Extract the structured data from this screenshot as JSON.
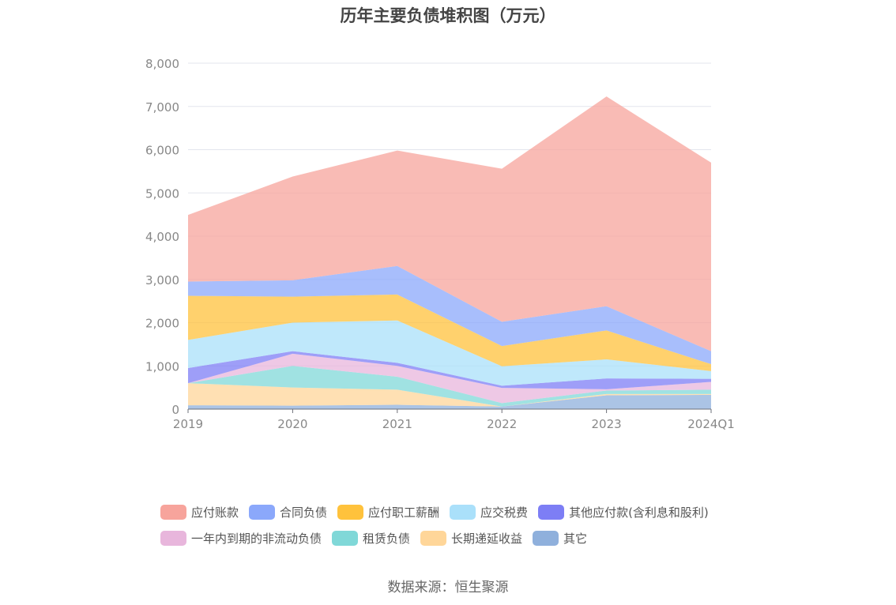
{
  "title": "历年主要负债堆积图（万元）",
  "source": "数据来源：恒生聚源",
  "chart_data": {
    "type": "area",
    "stacked": true,
    "title": "历年主要负债堆积图（万元）",
    "xlabel": "",
    "ylabel": "",
    "x": [
      "2019",
      "2020",
      "2021",
      "2022",
      "2023",
      "2024Q1"
    ],
    "ylim": [
      0,
      8000
    ],
    "yticks": [
      0,
      1000,
      2000,
      3000,
      4000,
      5000,
      6000,
      7000,
      8000
    ],
    "ytick_labels": [
      "0",
      "1,000",
      "2,000",
      "3,000",
      "4,000",
      "5,000",
      "6,000",
      "7,000",
      "8,000"
    ],
    "grid": "horizontal",
    "legend_position": "bottom",
    "series": [
      {
        "name": "其它",
        "color": "#8fb0dc",
        "values": [
          90,
          80,
          100,
          60,
          320,
          330
        ]
      },
      {
        "name": "长期递延收益",
        "color": "#ffd699",
        "values": [
          510,
          420,
          350,
          0,
          30,
          20
        ]
      },
      {
        "name": "租赁负债",
        "color": "#80d8d8",
        "values": [
          0,
          500,
          300,
          80,
          80,
          100
        ]
      },
      {
        "name": "一年内到期的非流动负债",
        "color": "#e8b6dc",
        "values": [
          0,
          280,
          250,
          350,
          30,
          180
        ]
      },
      {
        "name": "其他应付款(含利息和股利)",
        "color": "#7d7ef5",
        "values": [
          350,
          60,
          70,
          50,
          250,
          70
        ]
      },
      {
        "name": "应交税费",
        "color": "#aae0fa",
        "values": [
          650,
          660,
          980,
          450,
          440,
          180
        ]
      },
      {
        "name": "应付职工薪酬",
        "color": "#ffc23c",
        "values": [
          1020,
          600,
          600,
          470,
          670,
          160
        ]
      },
      {
        "name": "合同负债",
        "color": "#8ba8fb",
        "values": [
          330,
          380,
          660,
          560,
          560,
          300
        ]
      },
      {
        "name": "应付账款",
        "color": "#f7a49c",
        "values": [
          1540,
          2400,
          2670,
          3540,
          4850,
          4360
        ]
      }
    ],
    "legend_order": [
      "应付账款",
      "合同负债",
      "应付职工薪酬",
      "应交税费",
      "其他应付款(含利息和股利)",
      "一年内到期的非流动负债",
      "租赁负债",
      "长期递延收益",
      "其它"
    ]
  }
}
